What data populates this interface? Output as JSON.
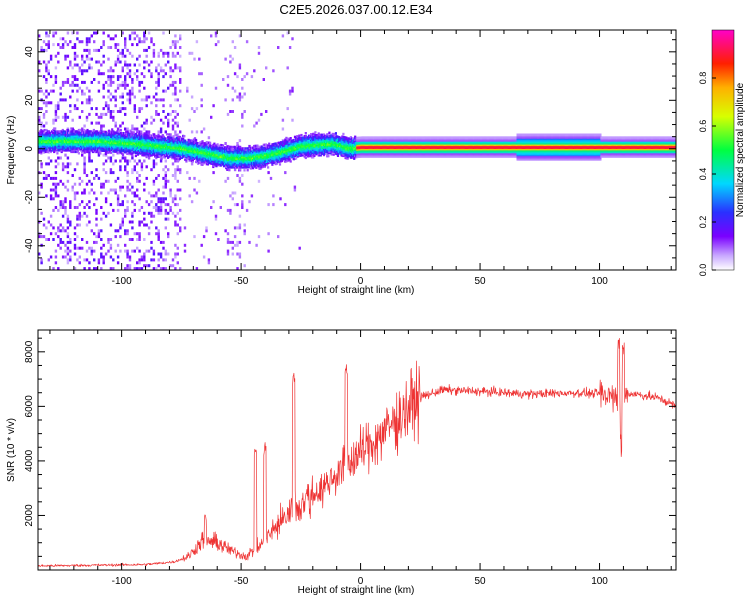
{
  "title": "C2E5.2026.037.00.12.E34",
  "chart_data": [
    {
      "type": "heatmap",
      "xlabel": "Height of straight line (km)",
      "ylabel": "Frequency (Hz)",
      "xlim": [
        -135,
        132
      ],
      "ylim": [
        -50,
        49
      ],
      "x_ticks": [
        -100,
        -50,
        0,
        50,
        100
      ],
      "y_ticks": [
        -40,
        -20,
        0,
        20,
        40
      ],
      "ridge": [
        {
          "x": -125,
          "f": 3
        },
        {
          "x": -110,
          "f": 3
        },
        {
          "x": -95,
          "f": 2
        },
        {
          "x": -85,
          "f": 1
        },
        {
          "x": -75,
          "f": 0
        },
        {
          "x": -65,
          "f": -2
        },
        {
          "x": -55,
          "f": -4
        },
        {
          "x": -48,
          "f": -4
        },
        {
          "x": -40,
          "f": -3
        },
        {
          "x": -32,
          "f": -1
        },
        {
          "x": -25,
          "f": 1
        },
        {
          "x": -12,
          "f": 2
        },
        {
          "x": -5,
          "f": 0
        },
        {
          "x": 0,
          "f": 0.5
        },
        {
          "x": 132,
          "f": 0.5
        }
      ],
      "colorbar": {
        "label": "Normalized spectral amplitude",
        "min": 0.0,
        "max": 1.0,
        "ticks": [
          "0.0",
          "0.2",
          "0.4",
          "0.6",
          "0.8"
        ]
      }
    },
    {
      "type": "line",
      "xlabel": "Height of straight line (km)",
      "ylabel": "SNR (10 * v/v)",
      "xlim": [
        -135,
        132
      ],
      "ylim": [
        0,
        8800
      ],
      "x_ticks": [
        -100,
        -50,
        0,
        50,
        100
      ],
      "y_ticks": [
        2000,
        4000,
        6000,
        8000
      ],
      "color": "#ee3333",
      "envelope": [
        {
          "x": -135,
          "y": 150
        },
        {
          "x": -90,
          "y": 200
        },
        {
          "x": -78,
          "y": 300
        },
        {
          "x": -72,
          "y": 500
        },
        {
          "x": -66,
          "y": 1100
        },
        {
          "x": -60,
          "y": 1000
        },
        {
          "x": -54,
          "y": 700
        },
        {
          "x": -48,
          "y": 500
        },
        {
          "x": -42,
          "y": 900
        },
        {
          "x": -36,
          "y": 1500
        },
        {
          "x": -30,
          "y": 2100
        },
        {
          "x": -24,
          "y": 2500
        },
        {
          "x": -16,
          "y": 3000
        },
        {
          "x": -8,
          "y": 3700
        },
        {
          "x": 0,
          "y": 4300
        },
        {
          "x": 8,
          "y": 4900
        },
        {
          "x": 16,
          "y": 5600
        },
        {
          "x": 24,
          "y": 6300
        },
        {
          "x": 34,
          "y": 6600
        },
        {
          "x": 50,
          "y": 6550
        },
        {
          "x": 70,
          "y": 6450
        },
        {
          "x": 90,
          "y": 6500
        },
        {
          "x": 105,
          "y": 6450
        },
        {
          "x": 115,
          "y": 6450
        },
        {
          "x": 125,
          "y": 6300
        },
        {
          "x": 132,
          "y": 6000
        }
      ],
      "peaks": [
        {
          "x": -65,
          "y": 2300
        },
        {
          "x": -44,
          "y": 4600
        },
        {
          "x": -40,
          "y": 4800
        },
        {
          "x": -28,
          "y": 7300
        },
        {
          "x": -6,
          "y": 7600
        },
        {
          "x": 108,
          "y": 8700
        },
        {
          "x": 110,
          "y": 8300
        }
      ],
      "dips": [
        {
          "x": 109,
          "y": 4300
        }
      ]
    }
  ]
}
